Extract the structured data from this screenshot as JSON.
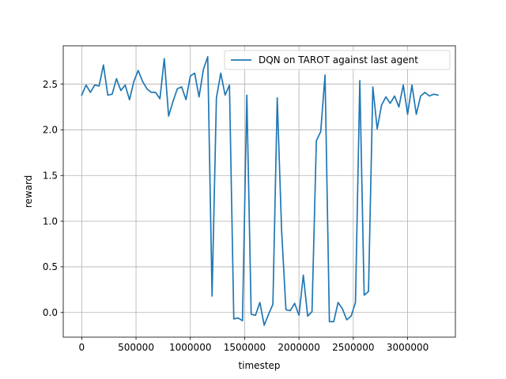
{
  "chart_data": {
    "type": "line",
    "xlabel": "timestep",
    "ylabel": "reward",
    "xlim": [
      -170000,
      3440000
    ],
    "ylim": [
      -0.27,
      2.92
    ],
    "xticks": [
      0,
      500000,
      1000000,
      1500000,
      2000000,
      2500000,
      3000000
    ],
    "xtick_labels": [
      "0",
      "500000",
      "1000000",
      "1500000",
      "2000000",
      "2500000",
      "3000000"
    ],
    "yticks": [
      0.0,
      0.5,
      1.0,
      1.5,
      2.0,
      2.5
    ],
    "ytick_labels": [
      "0.0",
      "0.5",
      "1.0",
      "1.5",
      "2.0",
      "2.5"
    ],
    "grid": true,
    "legend_position": "top-right",
    "series": [
      {
        "name": "DQN on TAROT against last agent",
        "color": "#1f77b4",
        "x": [
          0,
          40000,
          80000,
          120000,
          160000,
          200000,
          240000,
          280000,
          320000,
          360000,
          400000,
          440000,
          480000,
          520000,
          560000,
          600000,
          640000,
          680000,
          720000,
          760000,
          800000,
          840000,
          880000,
          920000,
          960000,
          1000000,
          1040000,
          1080000,
          1120000,
          1160000,
          1200000,
          1240000,
          1280000,
          1320000,
          1360000,
          1400000,
          1440000,
          1480000,
          1520000,
          1560000,
          1600000,
          1640000,
          1680000,
          1720000,
          1760000,
          1800000,
          1840000,
          1880000,
          1920000,
          1960000,
          2000000,
          2040000,
          2080000,
          2120000,
          2160000,
          2200000,
          2240000,
          2280000,
          2320000,
          2360000,
          2400000,
          2440000,
          2480000,
          2520000,
          2560000,
          2600000,
          2640000,
          2680000,
          2720000,
          2760000,
          2800000,
          2840000,
          2880000,
          2920000,
          2960000,
          3000000,
          3040000,
          3080000,
          3120000,
          3160000,
          3200000,
          3240000,
          3280000
        ],
        "y": [
          2.38,
          2.49,
          2.41,
          2.49,
          2.48,
          2.71,
          2.38,
          2.39,
          2.56,
          2.43,
          2.49,
          2.33,
          2.53,
          2.65,
          2.53,
          2.45,
          2.41,
          2.41,
          2.34,
          2.78,
          2.15,
          2.31,
          2.45,
          2.47,
          2.33,
          2.59,
          2.62,
          2.36,
          2.66,
          2.8,
          0.18,
          2.35,
          2.62,
          2.38,
          2.49,
          -0.07,
          -0.06,
          -0.09,
          2.38,
          -0.02,
          -0.03,
          0.11,
          -0.14,
          -0.02,
          0.09,
          2.35,
          0.9,
          0.03,
          0.02,
          0.1,
          -0.03,
          0.41,
          -0.04,
          0.01,
          1.88,
          1.98,
          2.6,
          -0.1,
          -0.1,
          0.11,
          0.04,
          -0.08,
          -0.04,
          0.11,
          2.54,
          0.19,
          0.23,
          2.47,
          2.01,
          2.27,
          2.36,
          2.29,
          2.37,
          2.25,
          2.49,
          2.17,
          2.49,
          2.17,
          2.37,
          2.41,
          2.37,
          2.39,
          2.38
        ]
      }
    ]
  }
}
